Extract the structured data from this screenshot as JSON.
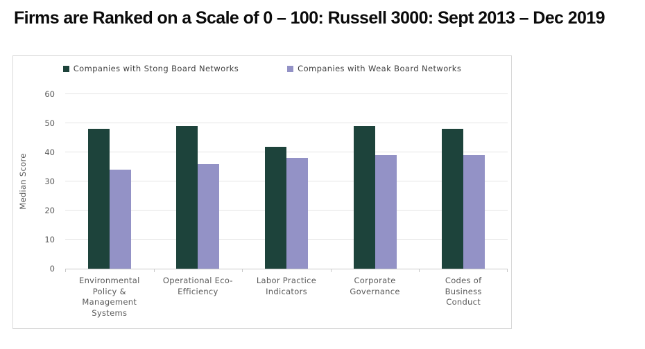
{
  "title": "Firms are Ranked on a Scale of 0 – 100: Russell 3000: Sept 2013 – Dec 2019",
  "chart_data": {
    "type": "bar",
    "title": "Firms are Ranked on a Scale of 0 – 100: Russell 3000: Sept 2013 – Dec 2019",
    "categories": [
      "Environmental Policy & Management Systems",
      "Operational Eco-Efficiency",
      "Labor Practice Indicators",
      "Corporate Governance",
      "Codes of Business Conduct"
    ],
    "category_lines": [
      [
        "Environmental",
        "Policy &",
        "Management",
        "Systems"
      ],
      [
        "Operational Eco-",
        "Efficiency"
      ],
      [
        "Labor Practice",
        "Indicators"
      ],
      [
        "Corporate",
        "Governance"
      ],
      [
        "Codes of",
        "Business",
        "Conduct"
      ]
    ],
    "series": [
      {
        "name": "Companies with Stong Board Networks",
        "color": "#1d433b",
        "values": [
          48,
          49,
          42,
          49,
          48
        ]
      },
      {
        "name": "Companies with Weak Board Networks",
        "color": "#9392c6",
        "values": [
          34,
          36,
          38,
          39,
          39
        ]
      }
    ],
    "xlabel": "",
    "ylabel": "Median Score",
    "ylim": [
      0,
      60
    ],
    "yticks": [
      0,
      10,
      20,
      30,
      40,
      50,
      60
    ],
    "grid": "horizontal",
    "legend_position": "top"
  },
  "colors": {
    "strong_series": "#1d433b",
    "weak_series": "#9392c6",
    "panel_border": "#d8d8d8",
    "gridline": "#e4e4e4",
    "axis_line": "#c9c9c9",
    "tick_label": "#595959",
    "legend_text": "#3f3f3f",
    "title_text": "#0b0b0b"
  }
}
